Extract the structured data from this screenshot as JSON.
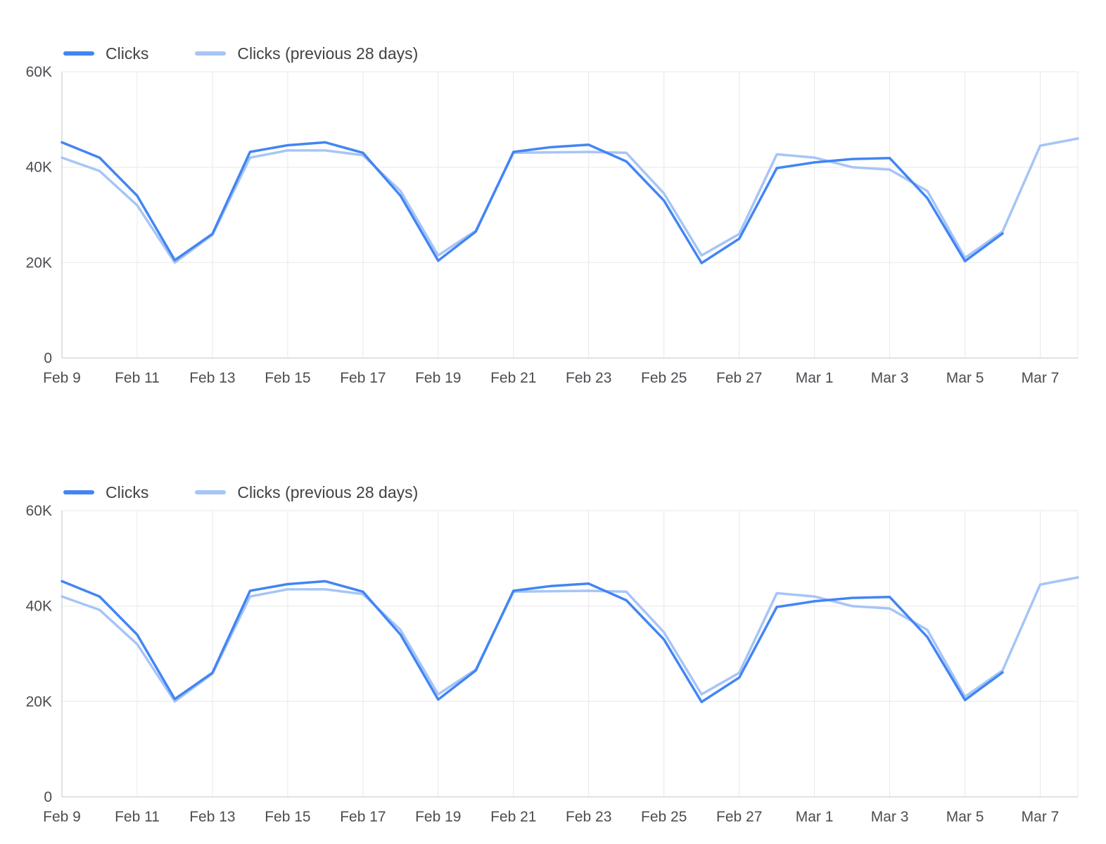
{
  "colors": {
    "current": "#4285f4",
    "previous": "#a6c5f7",
    "grid": "#e8e8e8",
    "axis": "#c2c6cb"
  },
  "chart_data": [
    {
      "type": "line",
      "title": "",
      "xlabel": "",
      "ylabel": "",
      "grid": true,
      "legend_position": "top-left",
      "ylim": [
        0,
        60000
      ],
      "yticks": [
        0,
        20000,
        40000,
        60000
      ],
      "ytick_labels": [
        "0",
        "20K",
        "40K",
        "60K"
      ],
      "x": [
        "Feb 9",
        "Feb 10",
        "Feb 11",
        "Feb 12",
        "Feb 13",
        "Feb 14",
        "Feb 15",
        "Feb 16",
        "Feb 17",
        "Feb 18",
        "Feb 19",
        "Feb 20",
        "Feb 21",
        "Feb 22",
        "Feb 23",
        "Feb 24",
        "Feb 25",
        "Feb 26",
        "Feb 27",
        "Feb 28",
        "Mar 1",
        "Mar 2",
        "Mar 3",
        "Mar 4",
        "Mar 5",
        "Mar 6",
        "Mar 7",
        "Mar 8"
      ],
      "x_tick_positions": [
        0,
        2,
        4,
        6,
        8,
        10,
        12,
        14,
        16,
        18,
        20,
        22,
        24,
        26
      ],
      "x_tick_labels": [
        "Feb 9",
        "Feb 11",
        "Feb 13",
        "Feb 15",
        "Feb 17",
        "Feb 19",
        "Feb 21",
        "Feb 23",
        "Feb 25",
        "Feb 27",
        "Mar 1",
        "Mar 3",
        "Mar 5",
        "Mar 7"
      ],
      "series": [
        {
          "name": "Clicks",
          "color": "#4285f4",
          "values": [
            45200,
            42000,
            34000,
            20500,
            26000,
            43200,
            44600,
            45200,
            43000,
            34000,
            20400,
            26500,
            43200,
            44200,
            44700,
            41200,
            33000,
            19900,
            25000,
            39800,
            41000,
            41700,
            41900,
            33500,
            20300,
            26100,
            null,
            null
          ]
        },
        {
          "name": "Clicks (previous 28 days)",
          "color": "#a6c5f7",
          "values": [
            42000,
            39200,
            32000,
            20000,
            25800,
            42000,
            43500,
            43500,
            42500,
            35000,
            21500,
            26700,
            43000,
            43100,
            43200,
            43000,
            34500,
            21500,
            26000,
            42700,
            42000,
            40000,
            39500,
            35000,
            21000,
            26500,
            44500,
            46000
          ]
        }
      ]
    },
    {
      "type": "line",
      "title": "",
      "xlabel": "",
      "ylabel": "",
      "grid": true,
      "legend_position": "top-left",
      "ylim": [
        0,
        60000
      ],
      "yticks": [
        0,
        20000,
        40000,
        60000
      ],
      "ytick_labels": [
        "0",
        "20K",
        "40K",
        "60K"
      ],
      "x": [
        "Feb 9",
        "Feb 10",
        "Feb 11",
        "Feb 12",
        "Feb 13",
        "Feb 14",
        "Feb 15",
        "Feb 16",
        "Feb 17",
        "Feb 18",
        "Feb 19",
        "Feb 20",
        "Feb 21",
        "Feb 22",
        "Feb 23",
        "Feb 24",
        "Feb 25",
        "Feb 26",
        "Feb 27",
        "Feb 28",
        "Mar 1",
        "Mar 2",
        "Mar 3",
        "Mar 4",
        "Mar 5",
        "Mar 6",
        "Mar 7",
        "Mar 8"
      ],
      "x_tick_positions": [
        0,
        2,
        4,
        6,
        8,
        10,
        12,
        14,
        16,
        18,
        20,
        22,
        24,
        26
      ],
      "x_tick_labels": [
        "Feb 9",
        "Feb 11",
        "Feb 13",
        "Feb 15",
        "Feb 17",
        "Feb 19",
        "Feb 21",
        "Feb 23",
        "Feb 25",
        "Feb 27",
        "Mar 1",
        "Mar 3",
        "Mar 5",
        "Mar 7"
      ],
      "series": [
        {
          "name": "Clicks",
          "color": "#4285f4",
          "values": [
            45200,
            42000,
            34000,
            20500,
            26000,
            43200,
            44600,
            45200,
            43000,
            34000,
            20400,
            26500,
            43200,
            44200,
            44700,
            41200,
            33000,
            19900,
            25000,
            39800,
            41000,
            41700,
            41900,
            33500,
            20300,
            26100,
            null,
            null
          ]
        },
        {
          "name": "Clicks (previous 28 days)",
          "color": "#a6c5f7",
          "values": [
            42000,
            39200,
            32000,
            20000,
            25800,
            42000,
            43500,
            43500,
            42500,
            35000,
            21500,
            26700,
            43000,
            43100,
            43200,
            43000,
            34500,
            21500,
            26000,
            42700,
            42000,
            40000,
            39500,
            35000,
            21000,
            26500,
            44500,
            46000
          ]
        }
      ]
    }
  ]
}
